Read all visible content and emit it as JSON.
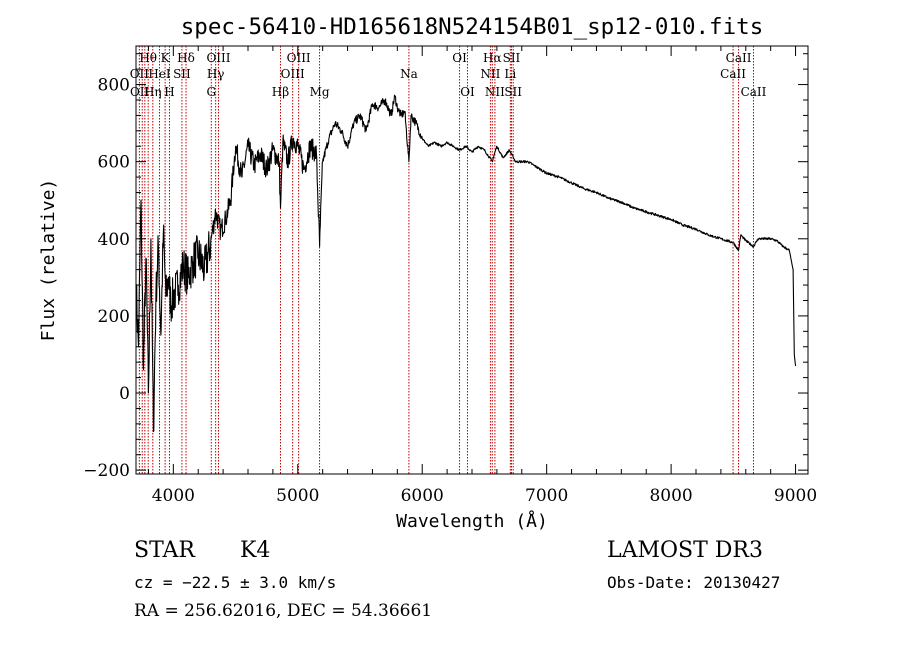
{
  "chart_data": {
    "type": "line",
    "title": "spec-56410-HD165618N524154B01_sp12-010.fits",
    "xlabel": "Wavelength (Å)",
    "ylabel": "Flux (relative)",
    "xlim": [
      3700,
      9100
    ],
    "ylim": [
      -210,
      900
    ],
    "xticks": [
      4000,
      5000,
      6000,
      7000,
      8000,
      9000
    ],
    "yticks": [
      -200,
      0,
      200,
      400,
      600,
      800
    ],
    "series": [
      {
        "name": "flux",
        "x": [
          3700,
          3720,
          3740,
          3760,
          3780,
          3800,
          3820,
          3840,
          3860,
          3880,
          3900,
          3920,
          3940,
          3960,
          3980,
          4000,
          4040,
          4080,
          4120,
          4160,
          4200,
          4250,
          4300,
          4340,
          4380,
          4420,
          4460,
          4500,
          4550,
          4600,
          4650,
          4700,
          4750,
          4800,
          4850,
          4861,
          4880,
          4920,
          4960,
          5000,
          5050,
          5100,
          5150,
          5175,
          5200,
          5250,
          5300,
          5350,
          5400,
          5450,
          5500,
          5550,
          5600,
          5650,
          5700,
          5750,
          5780,
          5800,
          5830,
          5860,
          5893,
          5910,
          5950,
          6000,
          6050,
          6100,
          6150,
          6200,
          6250,
          6300,
          6350,
          6400,
          6450,
          6500,
          6563,
          6580,
          6600,
          6650,
          6700,
          6750,
          6800,
          6850,
          6900,
          6950,
          7000,
          7100,
          7200,
          7300,
          7400,
          7500,
          7600,
          7700,
          7800,
          7900,
          8000,
          8100,
          8200,
          8300,
          8400,
          8500,
          8542,
          8560,
          8600,
          8662,
          8700,
          8800,
          8850,
          8900,
          8950,
          8980,
          8990,
          9000
        ],
        "y": [
          280,
          120,
          500,
          60,
          350,
          0,
          400,
          -100,
          250,
          380,
          150,
          420,
          250,
          300,
          230,
          250,
          280,
          330,
          300,
          340,
          360,
          320,
          390,
          470,
          420,
          450,
          500,
          640,
          560,
          640,
          590,
          620,
          580,
          630,
          600,
          480,
          650,
          600,
          660,
          640,
          580,
          640,
          620,
          380,
          600,
          660,
          700,
          680,
          640,
          700,
          720,
          680,
          750,
          740,
          760,
          720,
          770,
          740,
          720,
          730,
          600,
          720,
          700,
          660,
          640,
          650,
          640,
          650,
          640,
          630,
          640,
          625,
          640,
          630,
          600,
          620,
          640,
          610,
          630,
          600,
          600,
          600,
          590,
          580,
          570,
          560,
          545,
          530,
          520,
          505,
          495,
          480,
          470,
          460,
          450,
          435,
          425,
          410,
          400,
          390,
          370,
          410,
          395,
          380,
          400,
          400,
          395,
          380,
          370,
          320,
          100,
          70
        ]
      }
    ],
    "line_labels": [
      {
        "text": "Hθ",
        "x": 3798,
        "tier": 1
      },
      {
        "text": "OII",
        "x": 3727,
        "tier": 2
      },
      {
        "text": "OII",
        "x": 3729,
        "tier": 3
      },
      {
        "text": "Hη",
        "x": 3835,
        "tier": 3
      },
      {
        "text": "K",
        "x": 3934,
        "tier": 1
      },
      {
        "text": "HeI",
        "x": 3889,
        "tier": 2
      },
      {
        "text": "H",
        "x": 3969,
        "tier": 3
      },
      {
        "text": "SII",
        "x": 4069,
        "tier": 2
      },
      {
        "text": "Hδ",
        "x": 4102,
        "tier": 1
      },
      {
        "text": "OIII",
        "x": 4363,
        "tier": 1
      },
      {
        "text": "Hγ",
        "x": 4340,
        "tier": 2
      },
      {
        "text": "G",
        "x": 4305,
        "tier": 3
      },
      {
        "text": "Hβ",
        "x": 4861,
        "tier": 3
      },
      {
        "text": "OIII",
        "x": 4959,
        "tier": 2
      },
      {
        "text": "OIII",
        "x": 5007,
        "tier": 1
      },
      {
        "text": "Mg",
        "x": 5175,
        "tier": 3
      },
      {
        "text": "Na",
        "x": 5893,
        "tier": 2
      },
      {
        "text": "OI",
        "x": 6300,
        "tier": 1
      },
      {
        "text": "OI",
        "x": 6364,
        "tier": 3
      },
      {
        "text": "Hα",
        "x": 6563,
        "tier": 1
      },
      {
        "text": "SII",
        "x": 6717,
        "tier": 1
      },
      {
        "text": "NII",
        "x": 6548,
        "tier": 2
      },
      {
        "text": "Li",
        "x": 6708,
        "tier": 2
      },
      {
        "text": "NII",
        "x": 6584,
        "tier": 3
      },
      {
        "text": "SII",
        "x": 6731,
        "tier": 3
      },
      {
        "text": "CaII",
        "x": 8542,
        "tier": 1
      },
      {
        "text": "CaII",
        "x": 8498,
        "tier": 2
      },
      {
        "text": "CaII",
        "x": 8662,
        "tier": 3
      }
    ],
    "line_markers": [
      3727,
      3750,
      3771,
      3798,
      3835,
      3889,
      3934,
      3969,
      4069,
      4102,
      4305,
      4340,
      4363,
      4861,
      4959,
      5007,
      5175,
      5893,
      6300,
      6364,
      6548,
      6563,
      6584,
      6708,
      6717,
      6731,
      8498,
      8542,
      8662
    ]
  },
  "info": {
    "class": "STAR",
    "subclass": "K4",
    "cz": "cz = −22.5 ± 3.0 km/s",
    "radec": "RA = 256.62016, DEC =  54.36661",
    "survey": "LAMOST DR3",
    "obsdate": "Obs-Date: 20130427"
  }
}
